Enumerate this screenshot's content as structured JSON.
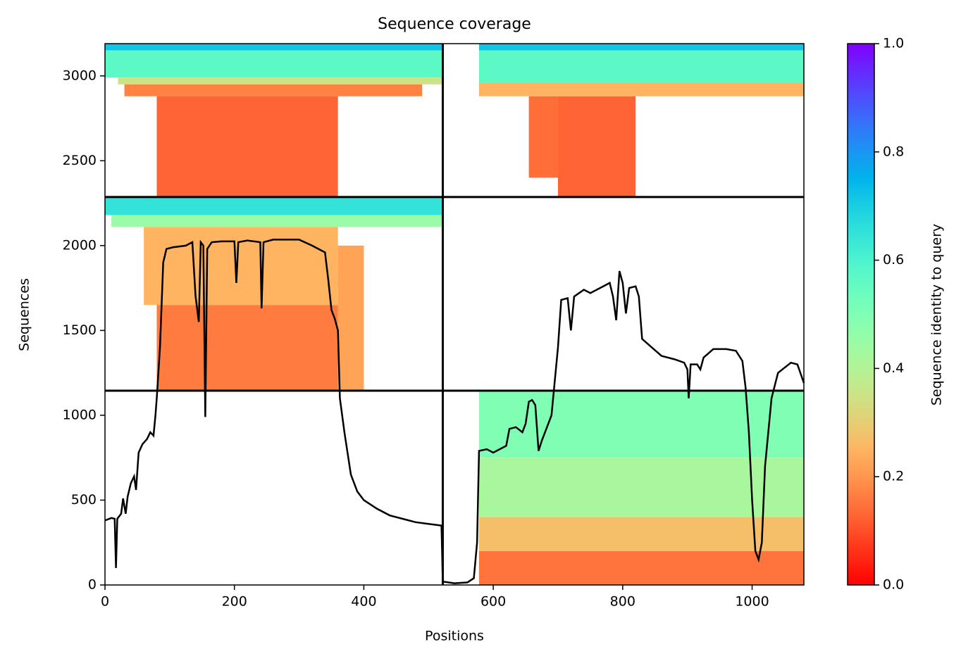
{
  "chart_data": {
    "type": "coverage",
    "title": "Sequence coverage",
    "xlabel": "Positions",
    "ylabel": "Sequences",
    "colorbar_label": "Sequence identity to query",
    "colormap": "rainbow_r",
    "xlim": [
      0,
      1080
    ],
    "ylim": [
      0,
      3190
    ],
    "xticks": [
      0,
      200,
      400,
      600,
      800,
      1000
    ],
    "yticks": [
      0,
      500,
      1000,
      1500,
      2000,
      2500,
      3000
    ],
    "clim": [
      0,
      1
    ],
    "cticks": [
      0.0,
      0.2,
      0.4,
      0.6,
      0.8,
      1.0
    ],
    "dividers": {
      "x": [
        522
      ],
      "y": [
        1145,
        2286
      ]
    },
    "blocks": [
      {
        "x": [
          0,
          522
        ],
        "y": [
          3150,
          3190
        ],
        "identity": 0.72
      },
      {
        "x": [
          0,
          522
        ],
        "y": [
          2990,
          3150
        ],
        "identity": 0.57
      },
      {
        "x": [
          20,
          522
        ],
        "y": [
          2950,
          2990
        ],
        "identity": 0.35
      },
      {
        "x": [
          30,
          490
        ],
        "y": [
          2880,
          2950
        ],
        "identity": 0.17
      },
      {
        "x": [
          80,
          360
        ],
        "y": [
          2290,
          2880
        ],
        "identity": 0.13
      },
      {
        "x": [
          578,
          1080
        ],
        "y": [
          3150,
          3190
        ],
        "identity": 0.72
      },
      {
        "x": [
          578,
          1080
        ],
        "y": [
          2960,
          3150
        ],
        "identity": 0.57
      },
      {
        "x": [
          578,
          1080
        ],
        "y": [
          2880,
          2960
        ],
        "identity": 0.25
      },
      {
        "x": [
          655,
          700
        ],
        "y": [
          2400,
          2880
        ],
        "identity": 0.14
      },
      {
        "x": [
          700,
          820
        ],
        "y": [
          2290,
          2880
        ],
        "identity": 0.13
      },
      {
        "x": [
          0,
          522
        ],
        "y": [
          2180,
          2286
        ],
        "identity": 0.65
      },
      {
        "x": [
          10,
          522
        ],
        "y": [
          2110,
          2180
        ],
        "identity": 0.45
      },
      {
        "x": [
          60,
          360
        ],
        "y": [
          1650,
          2110
        ],
        "identity": 0.25
      },
      {
        "x": [
          80,
          360
        ],
        "y": [
          1145,
          1650
        ],
        "identity": 0.16
      },
      {
        "x": [
          360,
          400
        ],
        "y": [
          1145,
          2000
        ],
        "identity": 0.22
      },
      {
        "x": [
          578,
          1080
        ],
        "y": [
          750,
          1145
        ],
        "identity": 0.5
      },
      {
        "x": [
          578,
          1080
        ],
        "y": [
          400,
          750
        ],
        "identity": 0.42
      },
      {
        "x": [
          578,
          1080
        ],
        "y": [
          200,
          400
        ],
        "identity": 0.27
      },
      {
        "x": [
          578,
          1080
        ],
        "y": [
          0,
          200
        ],
        "identity": 0.15
      }
    ],
    "series": [
      {
        "name": "coverage",
        "color": "#000000",
        "x": [
          0,
          10,
          15,
          17,
          19,
          25,
          28,
          32,
          35,
          40,
          45,
          48,
          52,
          58,
          65,
          70,
          75,
          78,
          80,
          85,
          90,
          95,
          105,
          115,
          125,
          135,
          140,
          145,
          148,
          152,
          155,
          158,
          165,
          180,
          200,
          203,
          206,
          220,
          240,
          242,
          245,
          260,
          300,
          320,
          340,
          345,
          350,
          355,
          360,
          363,
          370,
          380,
          390,
          400,
          420,
          440,
          460,
          480,
          500,
          520,
          522,
          540,
          560,
          570,
          575,
          578,
          590,
          600,
          610,
          620,
          625,
          635,
          645,
          650,
          655,
          660,
          665,
          670,
          675,
          680,
          690,
          695,
          700,
          705,
          715,
          720,
          725,
          740,
          750,
          770,
          780,
          785,
          790,
          795,
          800,
          805,
          810,
          820,
          825,
          830,
          845,
          860,
          880,
          895,
          900,
          902,
          905,
          915,
          920,
          925,
          940,
          960,
          975,
          985,
          990,
          995,
          1000,
          1005,
          1010,
          1015,
          1020,
          1030,
          1040,
          1060,
          1070,
          1080
        ],
        "values": [
          380,
          395,
          390,
          100,
          390,
          420,
          510,
          420,
          520,
          600,
          640,
          560,
          780,
          830,
          860,
          900,
          880,
          1000,
          1100,
          1400,
          1900,
          1980,
          1990,
          1995,
          2000,
          2020,
          1700,
          1550,
          2020,
          2000,
          990,
          1980,
          2020,
          2025,
          2025,
          1780,
          2020,
          2030,
          2020,
          1630,
          2020,
          2035,
          2035,
          2000,
          1960,
          1800,
          1620,
          1570,
          1500,
          1100,
          900,
          650,
          550,
          500,
          450,
          410,
          390,
          370,
          360,
          350,
          20,
          10,
          15,
          40,
          250,
          790,
          800,
          780,
          800,
          820,
          920,
          930,
          900,
          950,
          1080,
          1090,
          1060,
          790,
          850,
          900,
          1000,
          1200,
          1400,
          1680,
          1690,
          1500,
          1700,
          1740,
          1720,
          1760,
          1780,
          1700,
          1560,
          1850,
          1780,
          1600,
          1750,
          1760,
          1700,
          1450,
          1400,
          1350,
          1330,
          1310,
          1270,
          1100,
          1300,
          1300,
          1270,
          1340,
          1390,
          1390,
          1380,
          1320,
          1160,
          900,
          500,
          200,
          150,
          250,
          700,
          1100,
          1250,
          1310,
          1300,
          1190
        ]
      }
    ]
  }
}
